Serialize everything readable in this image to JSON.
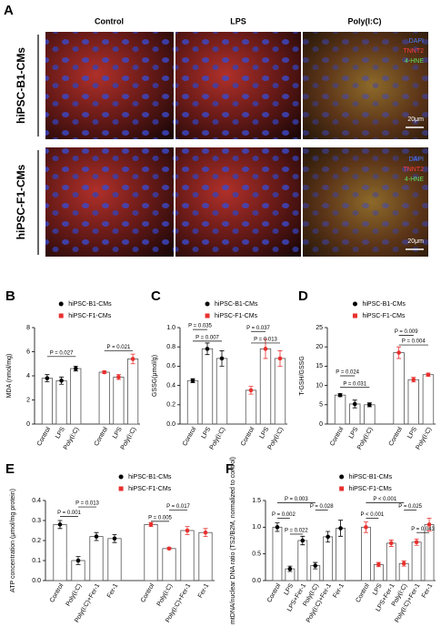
{
  "panel_a": {
    "letter": "A",
    "columns": [
      "Control",
      "LPS",
      "Poly(I:C)"
    ],
    "rows": [
      "hiPSC-B1-CMs",
      "hiPSC-F1-CMs"
    ],
    "stains": [
      [
        "DAPI",
        "TNNT2",
        "4-HNE"
      ],
      [
        "DAPI",
        "TNNT2",
        "4-HNE"
      ]
    ],
    "scale_bars": [
      "20μm",
      "20μm"
    ]
  },
  "chart_data": [
    {
      "type": "bar",
      "letter": "B",
      "ylabel": "MDA (nmol/mg)",
      "categories": [
        "Control",
        "LPS",
        "Poly(I:C)",
        "Control",
        "LPS",
        "Poly(I:C)"
      ],
      "series": [
        {
          "name": "hiPSC-B1-CMs",
          "color": "#000000",
          "values": [
            3.8,
            3.6,
            4.6,
            null,
            null,
            null
          ],
          "errors": [
            0.3,
            0.3,
            0.2,
            null,
            null,
            null
          ]
        },
        {
          "name": "hiPSC-F1-CMs",
          "color": "#e8312f",
          "values": [
            null,
            null,
            null,
            4.3,
            3.9,
            5.4
          ],
          "errors": [
            null,
            null,
            null,
            0.1,
            0.2,
            0.4
          ]
        }
      ],
      "ylim": [
        0,
        8
      ],
      "yticks": [
        0,
        2,
        4,
        6,
        8
      ],
      "annotations": [
        "P = 0.027",
        "P = 0.021"
      ]
    },
    {
      "type": "bar",
      "letter": "C",
      "ylabel": "GSSG(μmol/g)",
      "categories": [
        "Control",
        "LPS",
        "Poly(I:C)",
        "Control",
        "LPS",
        "Poly(I:C)"
      ],
      "series": [
        {
          "name": "hiPSC-B1-CMs",
          "color": "#000000",
          "values": [
            0.45,
            0.78,
            0.68,
            null,
            null,
            null
          ],
          "errors": [
            0.02,
            0.06,
            0.08,
            null,
            null,
            null
          ]
        },
        {
          "name": "hiPSC-F1-CMs",
          "color": "#e8312f",
          "values": [
            null,
            null,
            null,
            0.35,
            0.78,
            0.68
          ],
          "errors": [
            null,
            null,
            null,
            0.04,
            0.1,
            0.08
          ]
        }
      ],
      "ylim": [
        0,
        1.0
      ],
      "yticks": [
        {
          "value": 0,
          "label": "0.0"
        },
        0.2,
        0.4,
        0.6,
        0.8,
        {
          "value": 1.0,
          "label": "1.0"
        }
      ],
      "annotations": [
        "P = 0.035",
        "P = 0.007",
        "P = 0.037",
        "P = 0.013"
      ]
    },
    {
      "type": "bar",
      "letter": "D",
      "ylabel": "T-GSH/GSSG",
      "categories": [
        "Control",
        "LPS",
        "Poly(I:C)",
        "Control",
        "LPS",
        "Poly(I:C)"
      ],
      "series": [
        {
          "name": "hiPSC-B1-CMs",
          "color": "#000000",
          "values": [
            7.5,
            5.2,
            5.0,
            null,
            null,
            null
          ],
          "errors": [
            0.4,
            1.0,
            0.5,
            null,
            null,
            null
          ]
        },
        {
          "name": "hiPSC-F1-CMs",
          "color": "#e8312f",
          "values": [
            null,
            null,
            null,
            18.5,
            11.5,
            12.8
          ],
          "errors": [
            null,
            null,
            null,
            1.5,
            0.6,
            0.4
          ]
        }
      ],
      "ylim": [
        0,
        25
      ],
      "yticks": [
        0,
        5,
        10,
        15,
        20,
        25
      ],
      "annotations": [
        "P = 0.024",
        "P = 0.031",
        "P = 0.009",
        "P = 0.004"
      ]
    },
    {
      "type": "bar",
      "letter": "E",
      "ylabel": "ATP concentration (μmol/mg protein)",
      "categories": [
        "Control",
        "Poly(I:C)",
        "Poly(I:C)+Fer-1",
        "Fer-1",
        "Control",
        "Poly(I:C)",
        "Poly(I:C)+Fer-1",
        "Fer-1"
      ],
      "series": [
        {
          "name": "hiPSC-B1-CMs",
          "color": "#000000",
          "values": [
            0.28,
            0.1,
            0.22,
            0.21,
            null,
            null,
            null,
            null
          ],
          "errors": [
            0.02,
            0.02,
            0.02,
            0.02,
            null,
            null,
            null,
            null
          ]
        },
        {
          "name": "hiPSC-F1-CMs",
          "color": "#e8312f",
          "values": [
            null,
            null,
            null,
            null,
            0.28,
            0.16,
            0.25,
            0.24
          ],
          "errors": [
            null,
            null,
            null,
            null,
            0.01,
            0.005,
            0.02,
            0.02
          ]
        }
      ],
      "ylim": [
        0,
        0.4
      ],
      "yticks": [
        {
          "value": 0,
          "label": "0.0"
        },
        0.1,
        0.2,
        0.3,
        0.4
      ],
      "annotations": [
        "P = 0.013",
        "P = 0.001",
        "P = 0.017",
        "P = 0.005"
      ]
    },
    {
      "type": "bar",
      "letter": "F",
      "ylabel": "mtDNA/nuclear DNA ratio (TS2/B2M, normalized to control)",
      "categories": [
        "Control",
        "LPS",
        "LPS+Fer-1",
        "Poly(I:C)",
        "Poly(I:C)+Fer-1",
        "Fer-1",
        "Control",
        "LPS",
        "LPS+Fer-1",
        "Poly(I:C)",
        "Poly(I:C)+Fer-1",
        "Fer-1"
      ],
      "series": [
        {
          "name": "hiPSC-B1-CMs",
          "color": "#000000",
          "values": [
            1.0,
            0.22,
            0.75,
            0.28,
            0.82,
            0.98,
            null,
            null,
            null,
            null,
            null,
            null
          ],
          "errors": [
            0.08,
            0.05,
            0.08,
            0.06,
            0.1,
            0.15,
            null,
            null,
            null,
            null,
            null,
            null
          ]
        },
        {
          "name": "hiPSC-F1-CMs",
          "color": "#e8312f",
          "values": [
            null,
            null,
            null,
            null,
            null,
            null,
            1.0,
            0.3,
            0.7,
            0.32,
            0.72,
            1.05
          ],
          "errors": [
            null,
            null,
            null,
            null,
            null,
            null,
            0.1,
            0.04,
            0.06,
            0.05,
            0.06,
            0.12
          ]
        }
      ],
      "ylim": [
        0,
        1.5
      ],
      "yticks": [
        {
          "value": 0,
          "label": "0.0"
        },
        0.5,
        {
          "value": 1.0,
          "label": "1.0"
        },
        1.5
      ],
      "annotations": [
        "P = 0.003",
        "P = 0.028",
        "P = 0.002",
        "P = 0.022",
        "P < 0.001",
        "P = 0.025",
        "P < 0.001",
        "P = 0.043"
      ]
    }
  ]
}
